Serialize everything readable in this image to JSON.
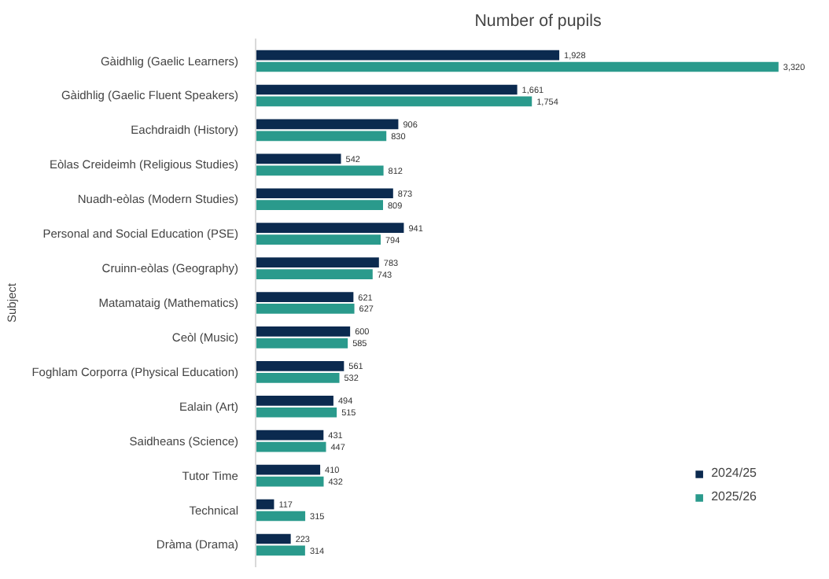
{
  "chart_data": {
    "type": "bar",
    "orientation": "horizontal",
    "title": "Number of pupils",
    "ylabel": "Subject",
    "categories": [
      "Gàidhlig (Gaelic Learners)",
      "Gàidhlig (Gaelic Fluent Speakers)",
      "Eachdraidh (History)",
      "Eòlas Creideimh (Religious Studies)",
      "Nuadh-eòlas (Modern Studies)",
      "Personal and Social Education (PSE)",
      "Cruinn-eòlas (Geography)",
      "Matamataig (Mathematics)",
      "Ceòl (Music)",
      "Foghlam Corporra (Physical Education)",
      "Ealain (Art)",
      "Saidheans (Science)",
      "Tutor Time",
      "Technical",
      "Dràma (Drama)"
    ],
    "series": [
      {
        "name": "2024/25",
        "color": "#0b2a4f",
        "values": [
          1928,
          1661,
          906,
          542,
          873,
          941,
          783,
          621,
          600,
          561,
          494,
          431,
          410,
          117,
          223
        ],
        "value_labels": [
          "1,928",
          "1,661",
          "906",
          "542",
          "873",
          "941",
          "783",
          "621",
          "600",
          "561",
          "494",
          "431",
          "410",
          "117",
          "223"
        ]
      },
      {
        "name": "2025/26",
        "color": "#2a9a8c",
        "values": [
          3320,
          1754,
          830,
          812,
          809,
          794,
          743,
          627,
          585,
          532,
          515,
          447,
          432,
          315,
          314
        ],
        "value_labels": [
          "3,320",
          "1,754",
          "830",
          "812",
          "809",
          "794",
          "743",
          "627",
          "585",
          "532",
          "515",
          "447",
          "432",
          "315",
          "314"
        ]
      }
    ],
    "grid": false,
    "legend": "bottom right"
  }
}
